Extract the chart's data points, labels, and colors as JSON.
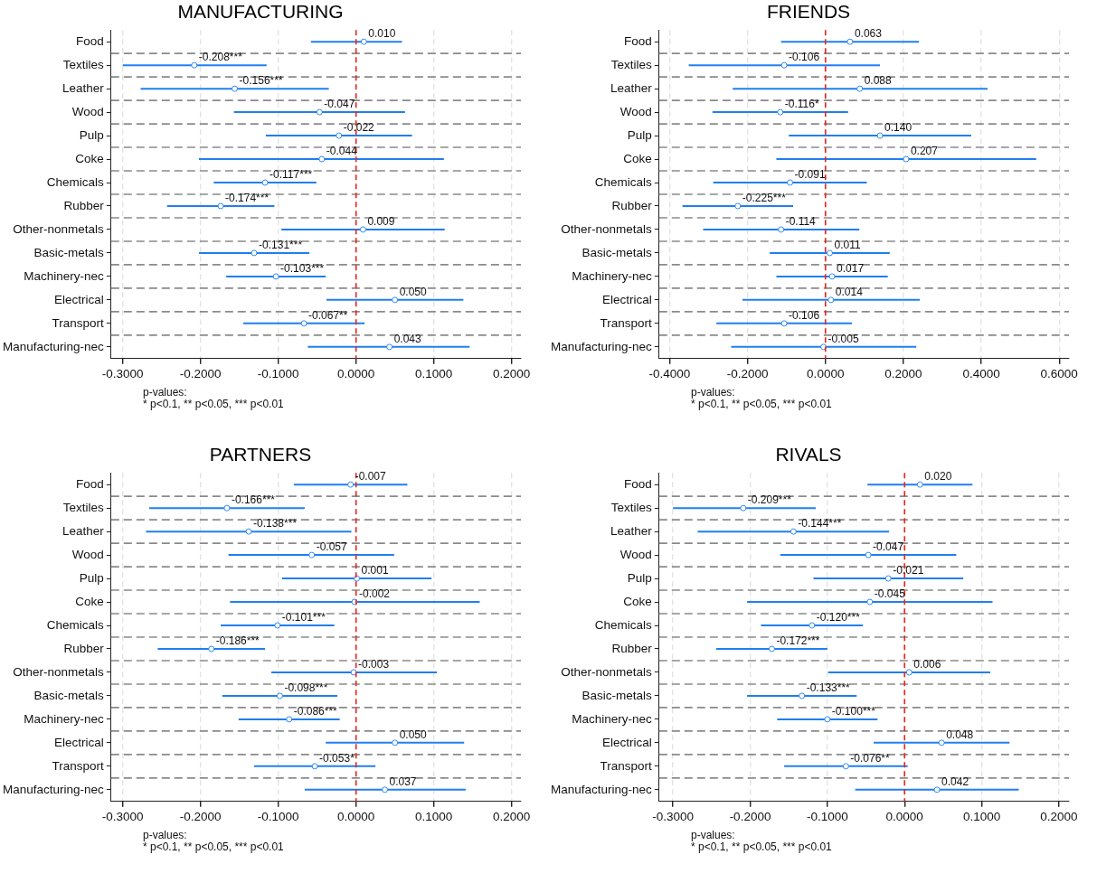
{
  "chart_data": [
    {
      "type": "scatter",
      "orientation": "horizontal",
      "title": "MANUFACTURING",
      "color": "#1f7ff0",
      "marker": "circle",
      "grid": true,
      "categories": [
        "Food",
        "Textiles",
        "Leather",
        "Wood",
        "Pulp",
        "Coke",
        "Chemicals",
        "Rubber",
        "Other-nonmetals",
        "Basic-metals",
        "Machinery-nec",
        "Electrical",
        "Transport",
        "Manufacturing-nec"
      ],
      "values": [
        0.01,
        -0.208,
        -0.156,
        -0.047,
        -0.022,
        -0.044,
        -0.117,
        -0.174,
        0.009,
        -0.131,
        -0.103,
        0.05,
        -0.067,
        0.043
      ],
      "errors": [
        [
          -0.058,
          0.059
        ],
        [
          -0.3,
          -0.115
        ],
        [
          -0.277,
          -0.035
        ],
        [
          -0.157,
          0.063
        ],
        [
          -0.116,
          0.072
        ],
        [
          -0.202,
          0.113
        ],
        [
          -0.183,
          -0.051
        ],
        [
          -0.243,
          -0.105
        ],
        [
          -0.096,
          0.114
        ],
        [
          -0.202,
          -0.06
        ],
        [
          -0.167,
          -0.039
        ],
        [
          -0.038,
          0.138
        ],
        [
          -0.145,
          0.011
        ],
        [
          -0.062,
          0.146
        ]
      ],
      "value_labels": [
        "0.010",
        "-0.208***",
        "-0.156***",
        "-0.047",
        "-0.022",
        "-0.044",
        "-0.117***",
        "-0.174***",
        "0.009",
        "-0.131***",
        "-0.103***",
        "0.050",
        "-0.067**",
        "0.043"
      ],
      "xlim": [
        -0.315,
        0.212
      ],
      "xticks": [
        {
          "value": -0.3,
          "label": "-0.3000"
        },
        {
          "value": -0.2,
          "label": "-0.2000"
        },
        {
          "value": -0.1,
          "label": "-0.1000"
        },
        {
          "value": 0,
          "label": "0.0000"
        },
        {
          "value": 0.1,
          "label": "0.1000"
        },
        {
          "value": 0.2,
          "label": "0.2000"
        }
      ],
      "ref_lines": [
        {
          "axis": "x",
          "value": 0,
          "color": "#e8261d",
          "line_style": "dashed"
        }
      ],
      "annotations": [
        "p-values:",
        "* p<0.1, ** p<0.05, *** p<0.01"
      ]
    },
    {
      "type": "scatter",
      "orientation": "horizontal",
      "title": "FRIENDS",
      "color": "#1f7ff0",
      "marker": "circle",
      "grid": true,
      "categories": [
        "Food",
        "Textiles",
        "Leather",
        "Wood",
        "Pulp",
        "Coke",
        "Chemicals",
        "Rubber",
        "Other-nonmetals",
        "Basic-metals",
        "Machinery-nec",
        "Electrical",
        "Transport",
        "Manufacturing-nec"
      ],
      "values": [
        0.063,
        -0.106,
        0.088,
        -0.116,
        0.14,
        0.207,
        -0.091,
        -0.225,
        -0.114,
        0.011,
        0.017,
        0.014,
        -0.106,
        -0.005
      ],
      "errors": [
        [
          -0.114,
          0.24
        ],
        [
          -0.351,
          0.14
        ],
        [
          -0.238,
          0.416
        ],
        [
          -0.29,
          0.058
        ],
        [
          -0.094,
          0.374
        ],
        [
          -0.126,
          0.541
        ],
        [
          -0.288,
          0.106
        ],
        [
          -0.367,
          -0.083
        ],
        [
          -0.314,
          0.087
        ],
        [
          -0.143,
          0.165
        ],
        [
          -0.126,
          0.16
        ],
        [
          -0.213,
          0.242
        ],
        [
          -0.28,
          0.068
        ],
        [
          -0.242,
          0.233
        ]
      ],
      "value_labels": [
        "0.063",
        "-0.106",
        "0.088",
        "-0.116*",
        "0.140",
        "0.207",
        "-0.091",
        "-0.225***",
        "-0.114",
        "0.011",
        "0.017",
        "0.014",
        "-0.106",
        "-0.005"
      ],
      "xlim": [
        -0.427,
        0.625
      ],
      "xticks": [
        {
          "value": -0.4,
          "label": "-0.4000"
        },
        {
          "value": -0.2,
          "label": "-0.2000"
        },
        {
          "value": 0,
          "label": "0.0000"
        },
        {
          "value": 0.2,
          "label": "0.2000"
        },
        {
          "value": 0.4,
          "label": "0.4000"
        },
        {
          "value": 0.6,
          "label": "0.6000"
        }
      ],
      "ref_lines": [
        {
          "axis": "x",
          "value": 0,
          "color": "#e8261d",
          "line_style": "dashed"
        }
      ],
      "annotations": [
        "p-values:",
        "* p<0.1, ** p<0.05, *** p<0.01"
      ]
    },
    {
      "type": "scatter",
      "orientation": "horizontal",
      "title": "PARTNERS",
      "color": "#1f7ff0",
      "marker": "circle",
      "grid": true,
      "categories": [
        "Food",
        "Textiles",
        "Leather",
        "Wood",
        "Pulp",
        "Coke",
        "Chemicals",
        "Rubber",
        "Other-nonmetals",
        "Basic-metals",
        "Machinery-nec",
        "Electrical",
        "Transport",
        "Manufacturing-nec"
      ],
      "values": [
        -0.007,
        -0.166,
        -0.138,
        -0.057,
        0.001,
        -0.002,
        -0.101,
        -0.186,
        -0.003,
        -0.098,
        -0.086,
        0.05,
        -0.053,
        0.037
      ],
      "errors": [
        [
          -0.08,
          0.066
        ],
        [
          -0.266,
          -0.066
        ],
        [
          -0.27,
          -0.006
        ],
        [
          -0.164,
          0.049
        ],
        [
          -0.095,
          0.097
        ],
        [
          -0.162,
          0.159
        ],
        [
          -0.174,
          -0.028
        ],
        [
          -0.255,
          -0.117
        ],
        [
          -0.109,
          0.104
        ],
        [
          -0.172,
          -0.024
        ],
        [
          -0.151,
          -0.021
        ],
        [
          -0.039,
          0.139
        ],
        [
          -0.131,
          0.025
        ],
        [
          -0.066,
          0.141
        ]
      ],
      "value_labels": [
        "-0.007",
        "-0.166***",
        "-0.138***",
        "-0.057",
        "0.001",
        "-0.002",
        "-0.101***",
        "-0.186***",
        "-0.003",
        "-0.098***",
        "-0.086***",
        "0.050",
        "-0.053*",
        "0.037"
      ],
      "xlim": [
        -0.315,
        0.212
      ],
      "xticks": [
        {
          "value": -0.3,
          "label": "-0.3000"
        },
        {
          "value": -0.2,
          "label": "-0.2000"
        },
        {
          "value": -0.1,
          "label": "-0.1000"
        },
        {
          "value": 0,
          "label": "0.0000"
        },
        {
          "value": 0.1,
          "label": "0.1000"
        },
        {
          "value": 0.2,
          "label": "0.2000"
        }
      ],
      "ref_lines": [
        {
          "axis": "x",
          "value": 0,
          "color": "#e8261d",
          "line_style": "dashed"
        }
      ],
      "annotations": [
        "p-values:",
        "* p<0.1, ** p<0.05, *** p<0.01"
      ]
    },
    {
      "type": "scatter",
      "orientation": "horizontal",
      "title": "RIVALS",
      "color": "#1f7ff0",
      "marker": "circle",
      "grid": true,
      "categories": [
        "Food",
        "Textiles",
        "Leather",
        "Wood",
        "Pulp",
        "Coke",
        "Chemicals",
        "Rubber",
        "Other-nonmetals",
        "Basic-metals",
        "Machinery-nec",
        "Electrical",
        "Transport",
        "Manufacturing-nec"
      ],
      "values": [
        0.02,
        -0.209,
        -0.144,
        -0.047,
        -0.021,
        -0.045,
        -0.12,
        -0.172,
        0.006,
        -0.133,
        -0.1,
        0.048,
        -0.076,
        0.042
      ],
      "errors": [
        [
          -0.048,
          0.088
        ],
        [
          -0.3,
          -0.115
        ],
        [
          -0.268,
          -0.02
        ],
        [
          -0.161,
          0.067
        ],
        [
          -0.118,
          0.076
        ],
        [
          -0.204,
          0.114
        ],
        [
          -0.186,
          -0.054
        ],
        [
          -0.244,
          -0.1
        ],
        [
          -0.099,
          0.111
        ],
        [
          -0.204,
          -0.062
        ],
        [
          -0.165,
          -0.035
        ],
        [
          -0.04,
          0.136
        ],
        [
          -0.156,
          0.004
        ],
        [
          -0.064,
          0.148
        ]
      ],
      "value_labels": [
        "0.020",
        "-0.209***",
        "-0.144***",
        "-0.047",
        "-0.021",
        "-0.045",
        "-0.120***",
        "-0.172***",
        "0.006",
        "-0.133***",
        "-0.100***",
        "0.048",
        "-0.076**",
        "0.042"
      ],
      "xlim": [
        -0.318,
        0.213
      ],
      "xticks": [
        {
          "value": -0.3,
          "label": "-0.3000"
        },
        {
          "value": -0.2,
          "label": "-0.2000"
        },
        {
          "value": -0.1,
          "label": "-0.1000"
        },
        {
          "value": 0,
          "label": "0.0000"
        },
        {
          "value": 0.1,
          "label": "0.1000"
        },
        {
          "value": 0.2,
          "label": "0.2000"
        }
      ],
      "ref_lines": [
        {
          "axis": "x",
          "value": 0,
          "color": "#e8261d",
          "line_style": "dashed"
        }
      ],
      "annotations": [
        "p-values:",
        "* p<0.1, ** p<0.05, *** p<0.01"
      ]
    }
  ]
}
